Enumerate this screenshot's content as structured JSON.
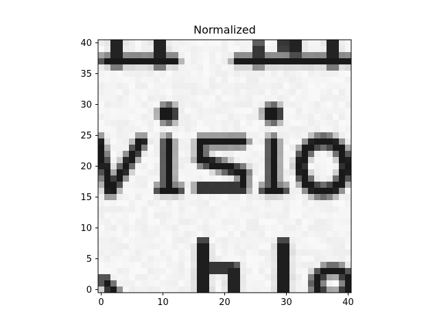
{
  "chart_data": {
    "type": "heatmap",
    "title": "Normalized",
    "xlabel": "",
    "ylabel": "",
    "xlim": [
      -0.5,
      40.5
    ],
    "ylim": [
      40.5,
      -0.5
    ],
    "xticks": [
      0,
      10,
      20,
      30,
      40
    ],
    "yticks": [
      0,
      5,
      10,
      15,
      20,
      25,
      30,
      35,
      40
    ],
    "grid": false,
    "colormap": "gray",
    "image_shape": [
      41,
      41
    ],
    "highlight_box": {
      "x0": 15,
      "y0": 15,
      "x1": 24,
      "y1": 24,
      "color": "#e32222"
    }
  },
  "axes": {
    "frame_color": "#000000"
  }
}
